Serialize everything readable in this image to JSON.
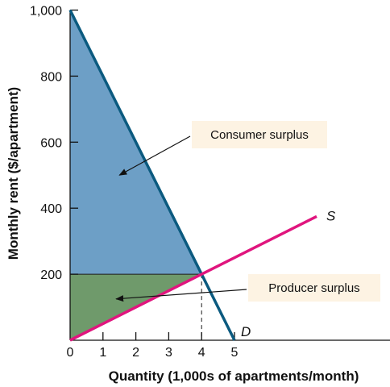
{
  "chart_data": {
    "type": "area",
    "xlabel": "Quantity (1,000s of apartments/month)",
    "ylabel": "Monthly rent ($/apartment)",
    "xlim": [
      0,
      5
    ],
    "ylim": [
      0,
      1000
    ],
    "x_ticks": [
      0,
      1,
      2,
      3,
      4,
      5
    ],
    "y_ticks": [
      200,
      400,
      600,
      800,
      1000
    ],
    "y_tick_labels": [
      "200",
      "400",
      "600",
      "800",
      "1,000"
    ],
    "grid": false,
    "series": [
      {
        "name": "D",
        "color": "#0b5a7f",
        "points": [
          [
            0,
            1000
          ],
          [
            5,
            0
          ]
        ]
      },
      {
        "name": "S",
        "color": "#e0157e",
        "points": [
          [
            0,
            0
          ],
          [
            7.5,
            375
          ]
        ]
      }
    ],
    "equilibrium": {
      "quantity": 4,
      "rent": 200
    },
    "regions": [
      {
        "name": "Consumer surplus",
        "color": "#6d9fc6",
        "points": [
          [
            0,
            1000
          ],
          [
            0,
            200
          ],
          [
            4,
            200
          ]
        ]
      },
      {
        "name": "Producer surplus",
        "color": "#6f9a6b",
        "points": [
          [
            0,
            200
          ],
          [
            0,
            0
          ],
          [
            4,
            200
          ]
        ]
      }
    ],
    "annotations": [
      {
        "text": "Consumer surplus",
        "points_to": [
          1.5,
          500
        ]
      },
      {
        "text": "Producer surplus",
        "points_to": [
          1.4,
          125
        ]
      }
    ]
  },
  "colors": {
    "callout_box": "#fdf3e3",
    "axis": "#111111"
  }
}
